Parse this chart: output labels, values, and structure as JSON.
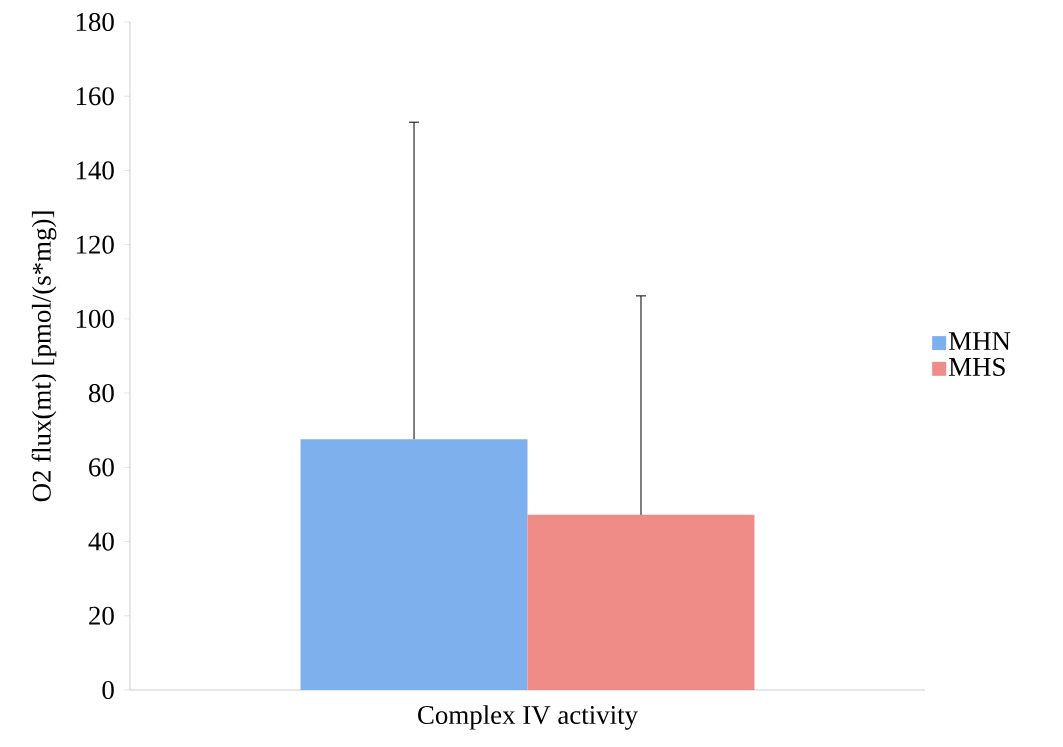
{
  "chart_data": {
    "type": "bar",
    "ylabel": "O2 flux(mt) [pmol/(s*mg)]",
    "categories": [
      "Complex IV activity"
    ],
    "series": [
      {
        "name": "MHN",
        "color": "#7fb0ee",
        "values": [
          67.6
        ],
        "errors": [
          [
            67.6,
            153
          ]
        ]
      },
      {
        "name": "MHS",
        "color": "#f08c88",
        "values": [
          47.2
        ],
        "errors": [
          [
            47.2,
            106.2
          ]
        ]
      }
    ],
    "ylim": [
      0,
      180
    ],
    "yticks": [
      0,
      20,
      40,
      60,
      80,
      100,
      120,
      140,
      160,
      180
    ],
    "legend": "right",
    "grid": false
  }
}
